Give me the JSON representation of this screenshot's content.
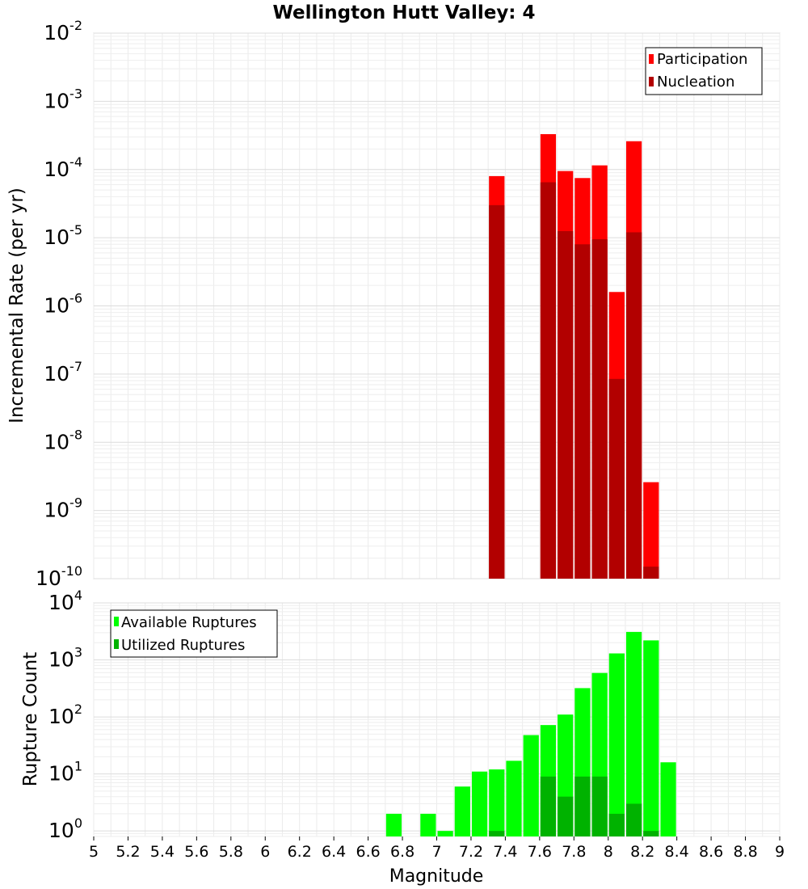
{
  "title": "Wellington Hutt Valley: 4",
  "xlabel": "Magnitude",
  "x_ticks": [
    "5",
    "5.2",
    "5.4",
    "5.6",
    "5.8",
    "6",
    "6.2",
    "6.4",
    "6.6",
    "6.8",
    "7",
    "7.2",
    "7.4",
    "7.6",
    "7.8",
    "8",
    "8.2",
    "8.4",
    "8.6",
    "8.8",
    "9"
  ],
  "chart_data": [
    {
      "type": "bar",
      "title": "Wellington Hutt Valley: 4",
      "xlabel": "",
      "ylabel": "Incremental Rate (per yr)",
      "y_scale": "log",
      "xlim": [
        5,
        9
      ],
      "ylim": [
        1e-10,
        0.01
      ],
      "y_ticks": [
        {
          "base": "10",
          "exp": "-10",
          "value": 1e-10
        },
        {
          "base": "10",
          "exp": "-9",
          "value": 1e-09
        },
        {
          "base": "10",
          "exp": "-8",
          "value": 1e-08
        },
        {
          "base": "10",
          "exp": "-7",
          "value": 1e-07
        },
        {
          "base": "10",
          "exp": "-6",
          "value": 1e-06
        },
        {
          "base": "10",
          "exp": "-5",
          "value": 1e-05
        },
        {
          "base": "10",
          "exp": "-4",
          "value": 0.0001
        },
        {
          "base": "10",
          "exp": "-3",
          "value": 0.001
        },
        {
          "base": "10",
          "exp": "-2",
          "value": 0.01
        }
      ],
      "grid": true,
      "legend_position": "top-right",
      "series": [
        {
          "name": "Participation",
          "color": "#ff0000",
          "x": [
            7.35,
            7.65,
            7.75,
            7.85,
            7.95,
            8.05,
            8.15,
            8.25
          ],
          "values": [
            8e-05,
            0.00033,
            9.5e-05,
            7.5e-05,
            0.000115,
            1.6e-06,
            0.00026,
            2.6e-09
          ]
        },
        {
          "name": "Nucleation",
          "color": "#b20000",
          "x": [
            7.35,
            7.65,
            7.75,
            7.85,
            7.95,
            8.05,
            8.15,
            8.25
          ],
          "values": [
            3e-05,
            6.5e-05,
            1.25e-05,
            8e-06,
            9.5e-06,
            8.5e-08,
            1.2e-05,
            1.5e-10
          ]
        }
      ]
    },
    {
      "type": "bar",
      "title": "",
      "xlabel": "Magnitude",
      "ylabel": "Rupture Count",
      "y_scale": "log",
      "xlim": [
        5,
        9
      ],
      "ylim": [
        0.8,
        10000
      ],
      "y_ticks": [
        {
          "base": "10",
          "exp": "0",
          "value": 1
        },
        {
          "base": "10",
          "exp": "1",
          "value": 10
        },
        {
          "base": "10",
          "exp": "2",
          "value": 100
        },
        {
          "base": "10",
          "exp": "3",
          "value": 1000
        },
        {
          "base": "10",
          "exp": "4",
          "value": 10000
        }
      ],
      "grid": true,
      "legend_position": "top-left",
      "series": [
        {
          "name": "Available Ruptures",
          "color": "#00ff00",
          "x": [
            6.75,
            6.95,
            7.05,
            7.15,
            7.25,
            7.35,
            7.45,
            7.55,
            7.65,
            7.75,
            7.85,
            7.95,
            8.05,
            8.15,
            8.25,
            8.35
          ],
          "values": [
            2,
            2,
            1,
            6,
            11,
            12,
            17,
            48,
            72,
            110,
            320,
            590,
            1300,
            3100,
            2200,
            16
          ]
        },
        {
          "name": "Utilized Ruptures",
          "color": "#00b200",
          "x": [
            7.35,
            7.65,
            7.75,
            7.85,
            7.95,
            8.05,
            8.15,
            8.25
          ],
          "values": [
            1,
            9,
            4,
            9,
            9,
            2,
            3,
            1
          ]
        }
      ]
    }
  ]
}
